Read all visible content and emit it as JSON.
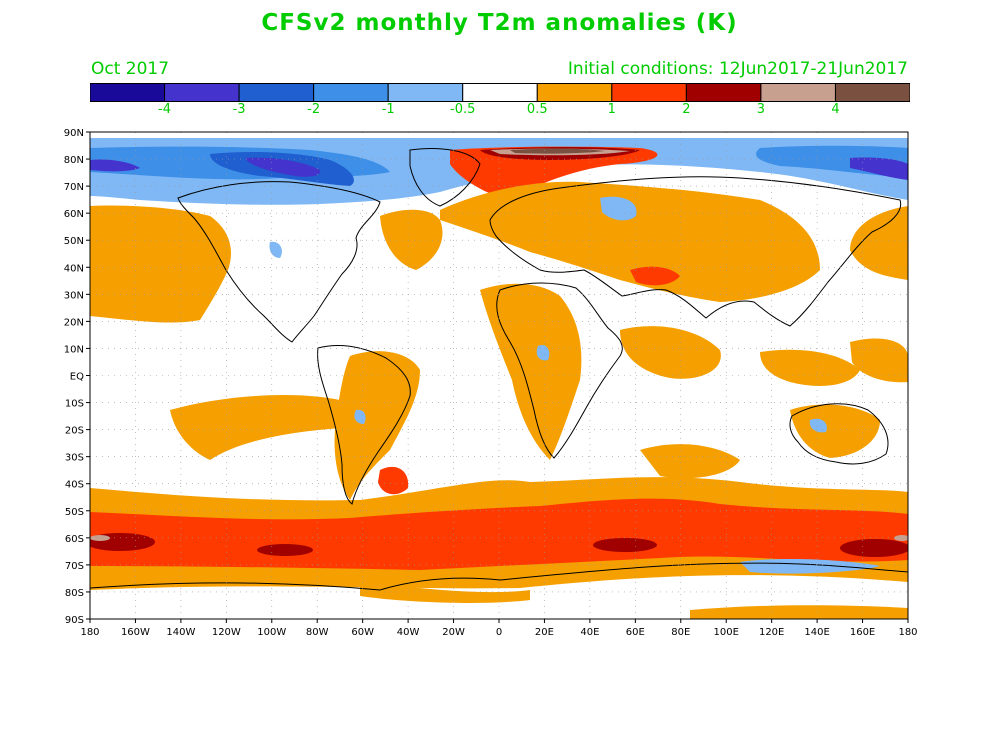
{
  "header": {
    "title": "CFSv2 monthly T2m anomalies (K)",
    "valid_month": "Oct 2017",
    "initial_conditions": "Initial conditions: 12Jun2017-21Jun2017"
  },
  "colorbar": {
    "colors": [
      "#1a0a9a",
      "#4433cc",
      "#1f5fd0",
      "#3d8fe8",
      "#7fb8f5",
      "#ffffff",
      "#f5a000",
      "#ff3a00",
      "#a00000",
      "#c8a090",
      "#7a5040"
    ],
    "labels": [
      "-4",
      "-3",
      "-2",
      "-1",
      "-0.5",
      "0.5",
      "1",
      "2",
      "3",
      "4"
    ]
  },
  "map": {
    "lat_labels": [
      "90N",
      "80N",
      "70N",
      "60N",
      "50N",
      "40N",
      "30N",
      "20N",
      "10N",
      "EQ",
      "10S",
      "20S",
      "30S",
      "40S",
      "50S",
      "60S",
      "70S",
      "80S",
      "90S"
    ],
    "lon_labels": [
      "180",
      "160W",
      "140W",
      "120W",
      "100W",
      "80W",
      "60W",
      "40W",
      "20W",
      "0",
      "20E",
      "40E",
      "60E",
      "80E",
      "100E",
      "120E",
      "140E",
      "160E",
      "180"
    ]
  }
}
